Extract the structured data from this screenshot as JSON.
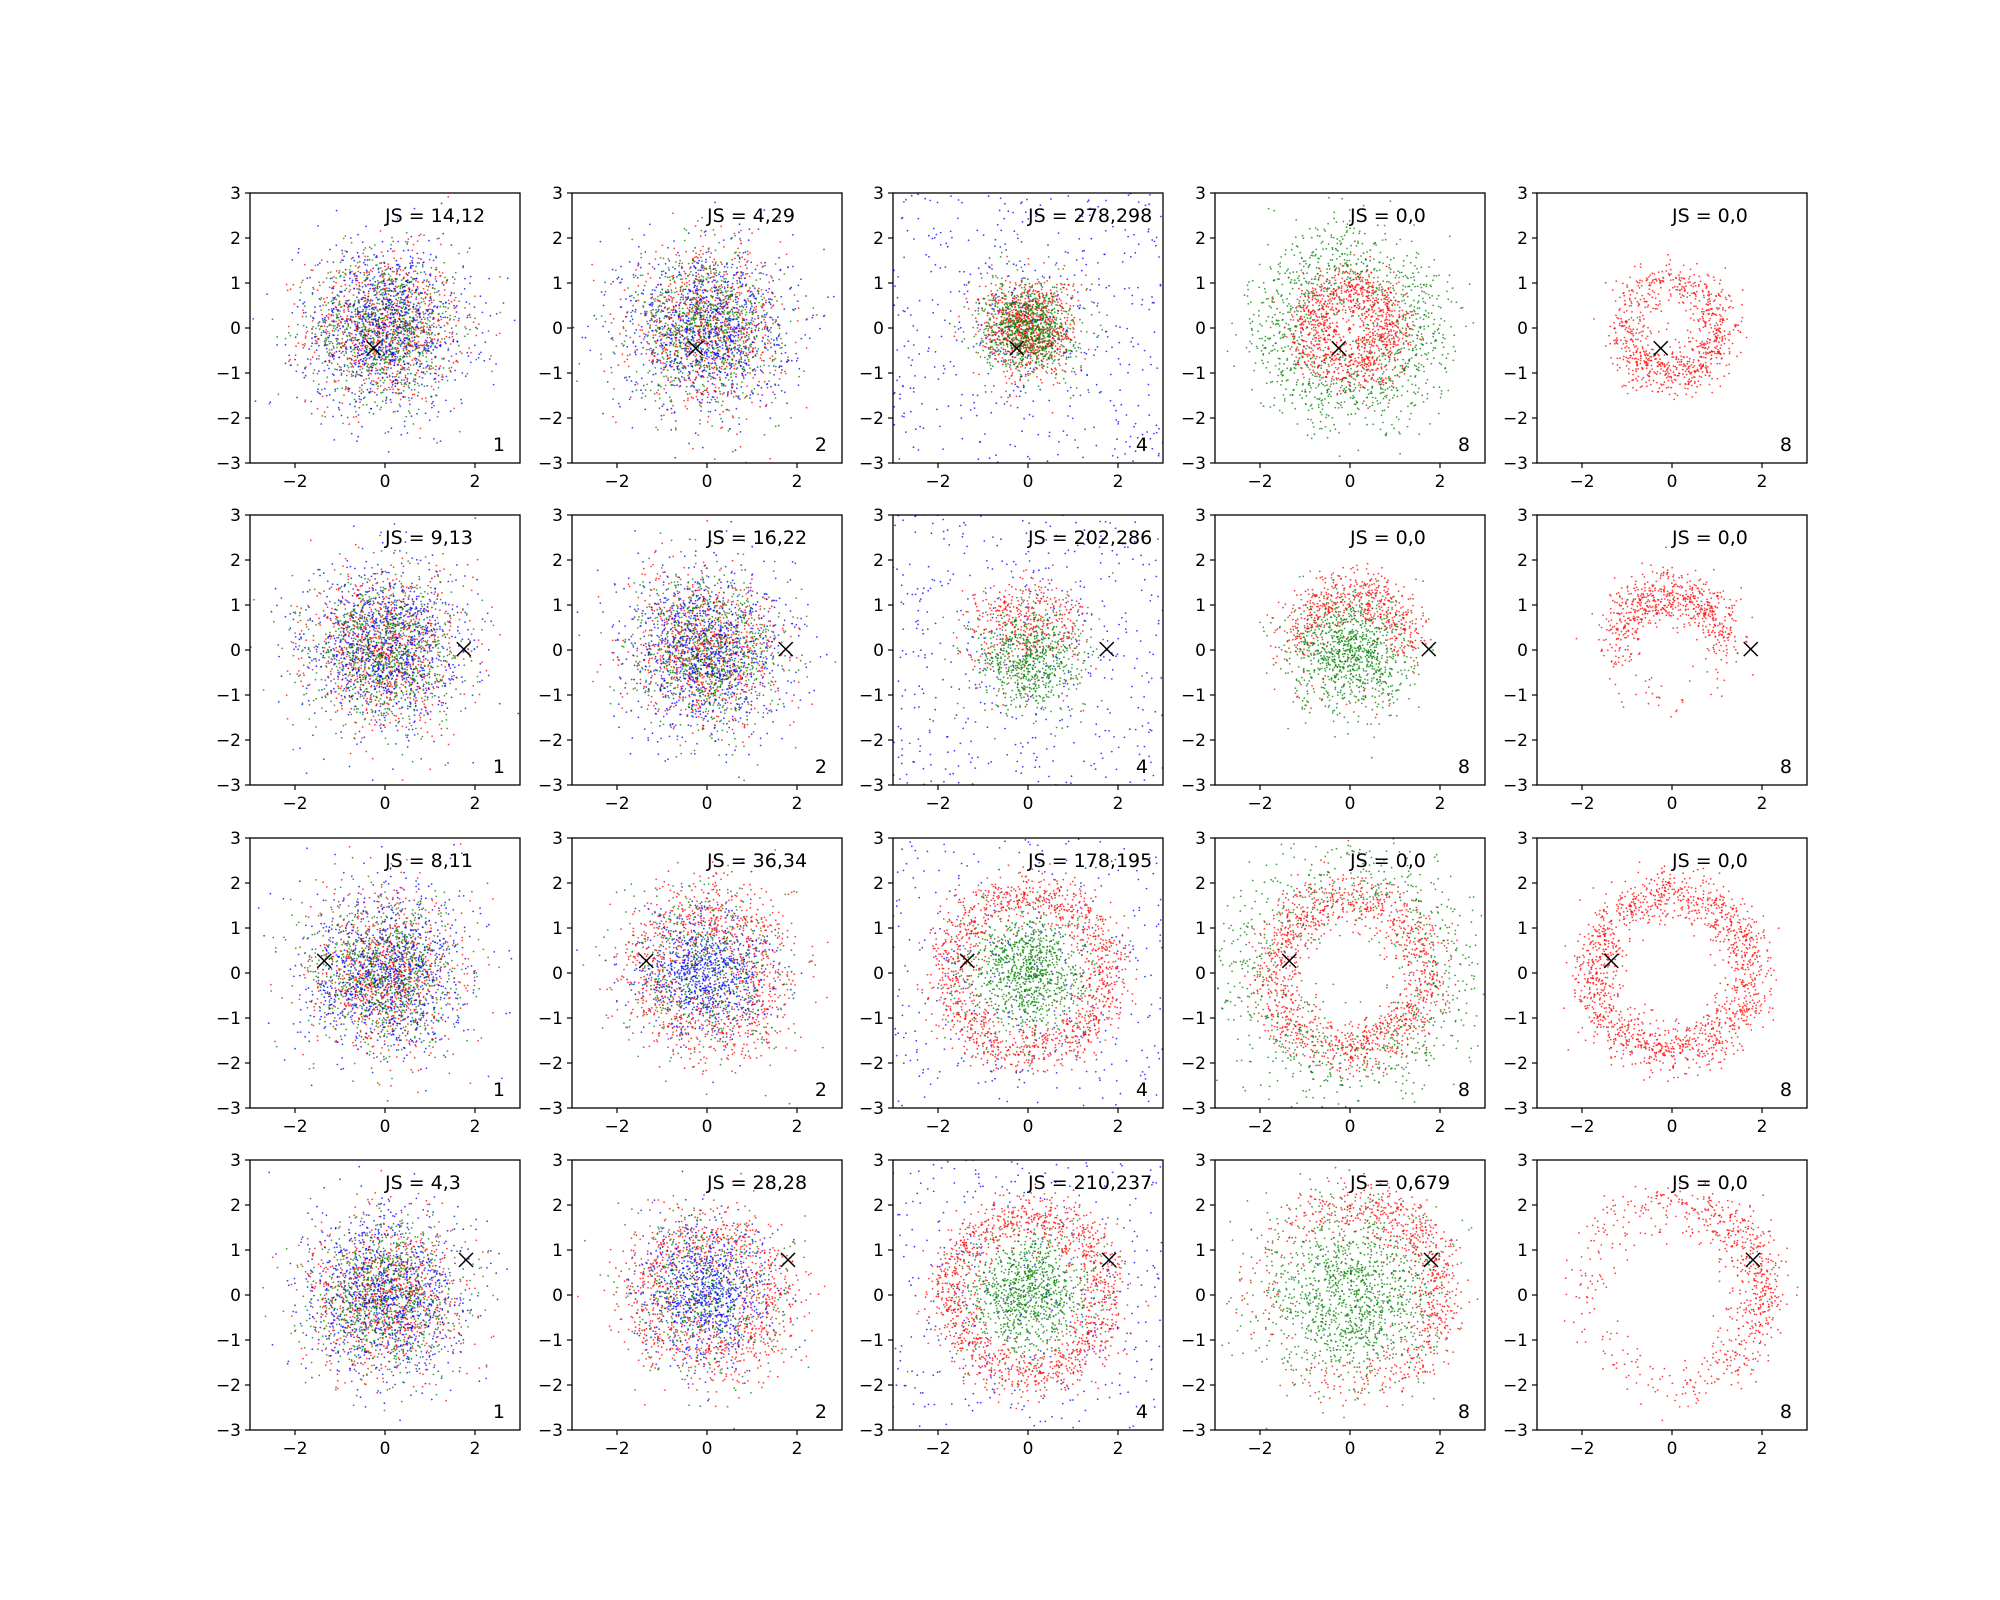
{
  "chart_data": {
    "type": "scatter",
    "layout": "grid 4 rows x 5 columns",
    "shared_axes": {
      "xlim": [
        -3,
        3
      ],
      "ylim": [
        -3,
        3
      ],
      "xticks": [
        -2,
        0,
        2
      ],
      "yticks": [
        -3,
        -2,
        -1,
        0,
        1,
        2,
        3
      ],
      "xtick_labels": [
        "−2",
        "0",
        "2"
      ],
      "ytick_labels": [
        "−3",
        "−2",
        "−1",
        "0",
        "1",
        "2",
        "3"
      ]
    },
    "series_colors": {
      "red": "#ff0000",
      "green": "#008000",
      "blue": "#0000ff",
      "marker": "#000000"
    },
    "marker_points": [
      {
        "row": 1,
        "x": -0.25,
        "y": -0.45
      },
      {
        "row": 2,
        "x": 1.75,
        "y": 0.02
      },
      {
        "row": 3,
        "x": -1.35,
        "y": 0.27
      },
      {
        "row": 4,
        "x": 1.8,
        "y": 0.78
      }
    ],
    "panels": [
      {
        "row": 1,
        "col": 1,
        "js_label": "JS = 14,12",
        "corner_label": "1",
        "distribution": "mixed_gaussian"
      },
      {
        "row": 1,
        "col": 2,
        "js_label": "JS = 4,29",
        "corner_label": "2",
        "distribution": "mixed_gaussian"
      },
      {
        "row": 1,
        "col": 3,
        "js_label": "JS = 278,298",
        "corner_label": "4",
        "distribution": "core_with_blue_noise"
      },
      {
        "row": 1,
        "col": 4,
        "js_label": "JS = 0,0",
        "corner_label": "8",
        "distribution": "red_ring_green_halo"
      },
      {
        "row": 1,
        "col": 5,
        "js_label": "JS = 0,0",
        "corner_label": "8",
        "distribution": "red_ring"
      },
      {
        "row": 2,
        "col": 1,
        "js_label": "JS = 9,13",
        "corner_label": "1",
        "distribution": "mixed_gaussian"
      },
      {
        "row": 2,
        "col": 2,
        "js_label": "JS = 16,22",
        "corner_label": "2",
        "distribution": "mixed_gaussian"
      },
      {
        "row": 2,
        "col": 3,
        "js_label": "JS = 202,286",
        "corner_label": "4",
        "distribution": "red_top_green_bottom_blue_noise"
      },
      {
        "row": 2,
        "col": 4,
        "js_label": "JS = 0,0",
        "corner_label": "8",
        "distribution": "red_arc_green_core"
      },
      {
        "row": 2,
        "col": 5,
        "js_label": "JS = 0,0",
        "corner_label": "8",
        "distribution": "red_arc_partial"
      },
      {
        "row": 3,
        "col": 1,
        "js_label": "JS = 8,11",
        "corner_label": "1",
        "distribution": "mixed_gaussian"
      },
      {
        "row": 3,
        "col": 2,
        "js_label": "JS = 36,34",
        "corner_label": "2",
        "distribution": "blue_core_red_ring"
      },
      {
        "row": 3,
        "col": 3,
        "js_label": "JS = 178,195",
        "corner_label": "4",
        "distribution": "green_core_red_ring_blue_noise"
      },
      {
        "row": 3,
        "col": 4,
        "js_label": "JS = 0,0",
        "corner_label": "8",
        "distribution": "red_ring_green_wide"
      },
      {
        "row": 3,
        "col": 5,
        "js_label": "JS = 0,0",
        "corner_label": "8",
        "distribution": "red_ring_large"
      },
      {
        "row": 4,
        "col": 1,
        "js_label": "JS = 4,3",
        "corner_label": "1",
        "distribution": "mixed_gaussian"
      },
      {
        "row": 4,
        "col": 2,
        "js_label": "JS = 28,28",
        "corner_label": "2",
        "distribution": "blue_core_red_ring"
      },
      {
        "row": 4,
        "col": 3,
        "js_label": "JS = 210,237",
        "corner_label": "4",
        "distribution": "green_core_red_ring_blue_noise"
      },
      {
        "row": 4,
        "col": 4,
        "js_label": "JS = 0,679",
        "corner_label": "8",
        "distribution": "green_core_red_crescent"
      },
      {
        "row": 4,
        "col": 5,
        "js_label": "JS = 0,0",
        "corner_label": "8",
        "distribution": "red_crescent"
      }
    ]
  }
}
